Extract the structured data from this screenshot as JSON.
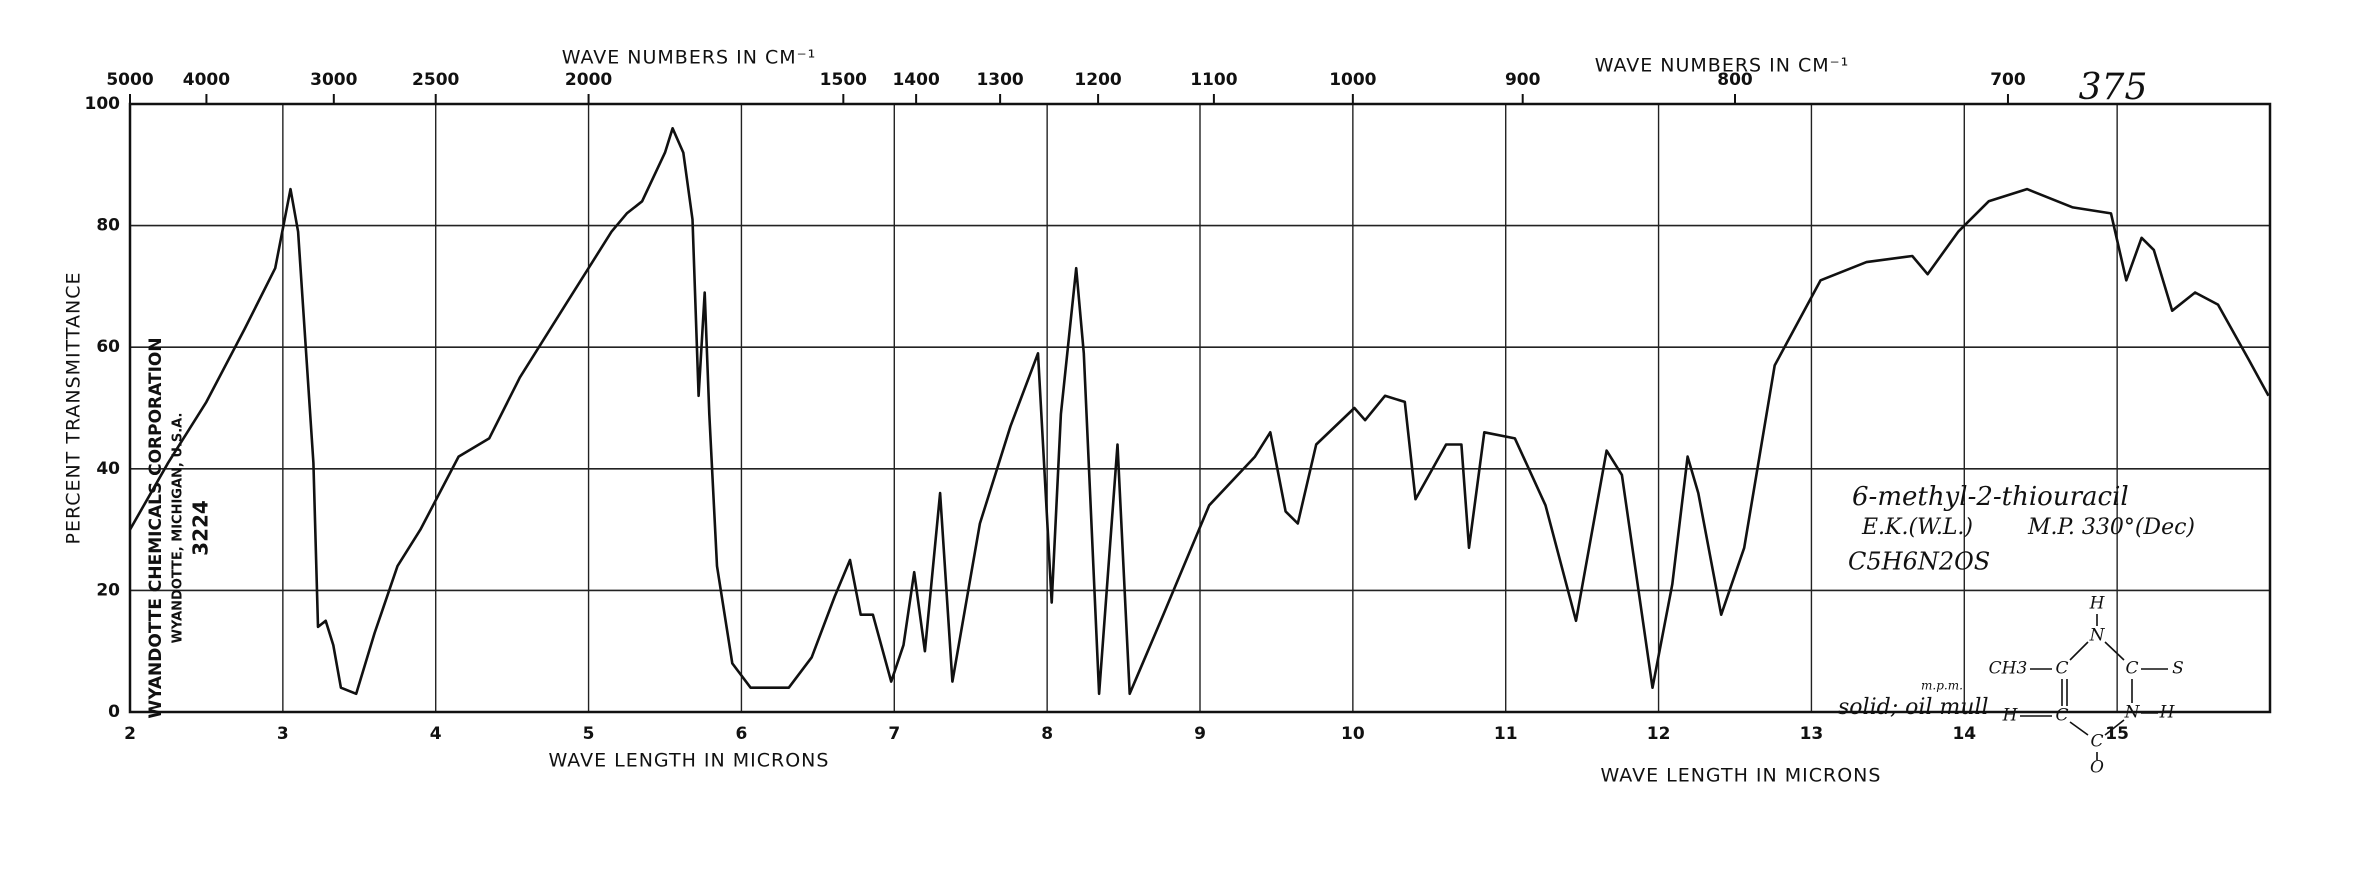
{
  "chart_data": {
    "type": "line",
    "corner_note": "375",
    "y_axis_label": "PERCENT TRANSMITTANCE",
    "top_axis_labels": [
      "WAVE NUMBERS IN CM⁻¹",
      "WAVE NUMBERS IN CM⁻¹"
    ],
    "bottom_axis_labels": [
      "WAVE LENGTH IN MICRONS",
      "WAVE LENGTH IN MICRONS"
    ],
    "maker_lines": [
      "WYANDOTTE CHEMICALS CORPORATION",
      "WYANDOTTE, MICHIGAN, U.S.A.",
      "3224"
    ],
    "sample_notes": [
      "6-methyl-2-thiouracil",
      "E.K.(W.L.)",
      "M.P. 330°(Dec)",
      "C5H6N2OS",
      "m.p.m.",
      "solid; oil mull"
    ],
    "structure_atoms": [
      "CH3",
      "C",
      "N",
      "H",
      "C",
      "S",
      "N",
      "H",
      "C",
      "H",
      "C",
      "O"
    ],
    "color": "#111111",
    "grid": true,
    "xlim": [
      2,
      16
    ],
    "xticks": [
      2,
      3,
      4,
      5,
      6,
      7,
      8,
      9,
      10,
      11,
      12,
      13,
      14,
      15
    ],
    "ylim": [
      0,
      100
    ],
    "yticks": [
      0,
      20,
      40,
      60,
      80,
      100
    ],
    "top_ticks": [
      5000,
      4000,
      3000,
      2500,
      2000,
      1500,
      1400,
      1300,
      1200,
      1100,
      1000,
      900,
      800,
      700
    ],
    "x": [
      2.0,
      2.25,
      2.5,
      2.75,
      2.95,
      3.05,
      3.1,
      3.2,
      3.23,
      3.28,
      3.33,
      3.38,
      3.48,
      3.6,
      3.75,
      3.9,
      4.15,
      4.35,
      4.55,
      4.85,
      5.15,
      5.25,
      5.35,
      5.5,
      5.55,
      5.62,
      5.68,
      5.72,
      5.76,
      5.79,
      5.84,
      5.94,
      6.06,
      6.31,
      6.46,
      6.61,
      6.71,
      6.78,
      6.86,
      6.98,
      7.06,
      7.13,
      7.2,
      7.3,
      7.38,
      7.56,
      7.76,
      7.94,
      8.03,
      8.09,
      8.19,
      8.24,
      8.34,
      8.46,
      8.54,
      8.76,
      9.06,
      9.36,
      9.46,
      9.56,
      9.64,
      9.76,
      10.01,
      10.08,
      10.21,
      10.34,
      10.41,
      10.61,
      10.71,
      10.76,
      10.86,
      11.06,
      11.26,
      11.46,
      11.66,
      11.76,
      11.96,
      12.09,
      12.19,
      12.26,
      12.41,
      12.56,
      12.76,
      13.06,
      13.36,
      13.66,
      13.76,
      13.96,
      14.16,
      14.41,
      14.71,
      14.96,
      15.06,
      15.16,
      15.24,
      15.36,
      15.51,
      15.66,
      15.86,
      15.99
    ],
    "values": [
      30,
      41,
      51,
      63,
      73,
      86,
      79,
      41,
      14,
      15,
      11,
      4,
      3,
      13,
      24,
      30,
      42,
      45,
      55,
      67,
      79,
      82,
      84,
      92,
      96,
      92,
      81,
      52,
      69,
      49,
      24,
      8,
      4,
      4,
      9,
      19,
      25,
      16,
      16,
      5,
      11,
      23,
      10,
      36,
      5,
      31,
      47,
      59,
      18,
      49,
      73,
      59,
      3,
      44,
      3,
      16,
      34,
      42,
      46,
      33,
      31,
      44,
      50,
      48,
      52,
      51,
      35,
      44,
      44,
      27,
      46,
      45,
      34,
      15,
      43,
      39,
      4,
      21,
      42,
      36,
      16,
      27,
      57,
      71,
      74,
      75,
      72,
      79,
      84,
      86,
      83,
      82,
      71,
      78,
      76,
      66,
      69,
      67,
      58,
      52
    ]
  }
}
